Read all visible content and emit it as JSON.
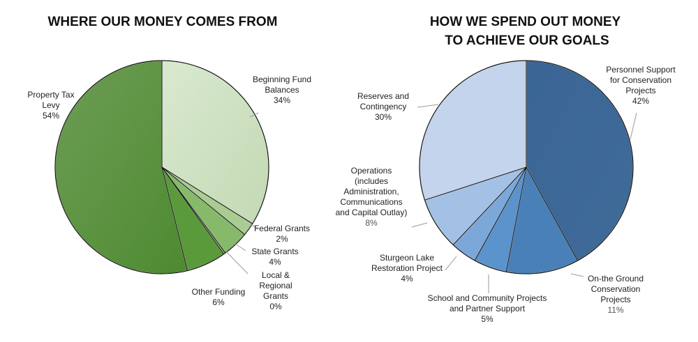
{
  "chart_data": [
    {
      "type": "pie",
      "title": "WHERE OUR MONEY COMES FROM",
      "slices": [
        {
          "label": "Beginning Fund Balances",
          "value": 34,
          "pct_label": "34%",
          "color": "#c3d9b4"
        },
        {
          "label": "Federal Grants",
          "value": 2,
          "pct_label": "2%",
          "color": "#a9cc92"
        },
        {
          "label": "State Grants",
          "value": 4,
          "pct_label": "4%",
          "color": "#86ba6a"
        },
        {
          "label": "Local & Regional Grants",
          "value": 0.3,
          "pct_label": "0%",
          "color": "#6ea84f"
        },
        {
          "label": "Other Funding",
          "value": 6,
          "pct_label": "6%",
          "color": "#5a9a3b"
        },
        {
          "label": "Property Tax Levy",
          "value": 54,
          "pct_label": "54%",
          "color": "#4e8a30"
        }
      ]
    },
    {
      "type": "pie",
      "title": "HOW WE SPEND OUT MONEY TO ACHIEVE OUR GOALS",
      "title_lines": [
        "HOW WE SPEND OUT MONEY",
        "TO ACHIEVE OUR GOALS"
      ],
      "slices": [
        {
          "label": "Personnel Support for Conservation Projects",
          "value": 42,
          "pct_label": "42%",
          "color": "#3f6b99"
        },
        {
          "label": "On-the Ground Conservation Projects",
          "value": 11,
          "pct_label": "11%",
          "color": "#4a80b8"
        },
        {
          "label": "School and Community Projects and Partner Support",
          "value": 5,
          "pct_label": "5%",
          "color": "#5b93cc"
        },
        {
          "label": "Sturgeon Lake Restoration Project",
          "value": 4,
          "pct_label": "4%",
          "color": "#7ba8d8"
        },
        {
          "label": "Operations (includes Administration, Communications and Capital Outlay)",
          "value": 8,
          "pct_label": "8%",
          "color": "#a3c1e4"
        },
        {
          "label": "Reserves and Contingency",
          "value": 30,
          "pct_label": "30%",
          "color": "#c3d4ec"
        }
      ]
    }
  ],
  "label_text": {
    "left": [
      {
        "lines": [
          "Beginning Fund",
          "Balances"
        ],
        "pct": "34%"
      },
      {
        "lines": [
          "Federal Grants"
        ],
        "pct": "2%"
      },
      {
        "lines": [
          "State Grants"
        ],
        "pct": "4%"
      },
      {
        "lines": [
          "Local &",
          "Regional",
          "Grants"
        ],
        "pct": "0%"
      },
      {
        "lines": [
          "Other Funding"
        ],
        "pct": "6%"
      },
      {
        "lines": [
          "Property Tax",
          "Levy"
        ],
        "pct": "54%"
      }
    ],
    "right": [
      {
        "lines": [
          "Personnel Support",
          "for Conservation",
          "Projects"
        ],
        "pct": "42%"
      },
      {
        "lines": [
          "On-the Ground",
          "Conservation",
          "Projects"
        ],
        "pct": "11%"
      },
      {
        "lines": [
          "School and Community Projects",
          "and Partner Support"
        ],
        "pct": "5%"
      },
      {
        "lines": [
          "Sturgeon Lake",
          "Restoration Project"
        ],
        "pct": "4%"
      },
      {
        "lines": [
          "Operations",
          "(includes",
          "Administration,",
          "Communications",
          "and Capital Outlay)"
        ],
        "pct": "8%"
      },
      {
        "lines": [
          "Reserves and",
          "Contingency"
        ],
        "pct": "30%"
      }
    ]
  },
  "gradients": {
    "left": [
      {
        "from": "#c3d9b4",
        "to": "#d9e9cf"
      },
      null,
      null,
      null,
      null,
      {
        "from": "#4e8a30",
        "to": "#6d9d55"
      }
    ],
    "right": [
      {
        "from": "#3f6b99",
        "to": "#3a6595"
      },
      null,
      null,
      null,
      null,
      null
    ]
  }
}
